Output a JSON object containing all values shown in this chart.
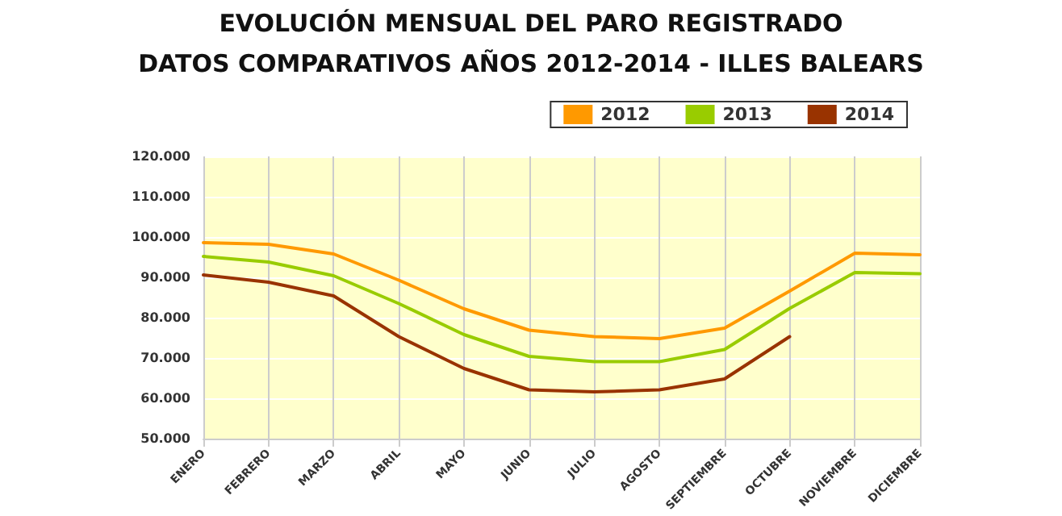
{
  "chart_data": {
    "type": "line",
    "title": "EVOLUCIÓN MENSUAL DEL PARO REGISTRADO",
    "subtitle": "DATOS COMPARATIVOS AÑOS 2012-2014 - ILLES BALEARS",
    "categories": [
      "ENERO",
      "FEBRERO",
      "MARZO",
      "ABRIL",
      "MAYO",
      "JUNIO",
      "JULIO",
      "AGOSTO",
      "SEPTIEMBRE",
      "OCTUBRE",
      "NOVIEMBRE",
      "DICIEMBRE"
    ],
    "series": [
      {
        "name": "2012",
        "color": "#ff9900",
        "values": [
          98600,
          98200,
          95800,
          89300,
          82200,
          76900,
          75300,
          74800,
          77400,
          86600,
          96000,
          95600
        ]
      },
      {
        "name": "2013",
        "color": "#99cc00",
        "values": [
          95200,
          93800,
          90400,
          83500,
          75800,
          70400,
          69100,
          69100,
          72100,
          82300,
          91200,
          90900
        ]
      },
      {
        "name": "2014",
        "color": "#993300",
        "values": [
          90600,
          88800,
          85400,
          75300,
          67400,
          62100,
          61600,
          62100,
          64800,
          75300,
          null,
          null
        ]
      }
    ],
    "ylim": [
      50000,
      120000
    ],
    "yticks": [
      {
        "value": 50000,
        "label": "50.000"
      },
      {
        "value": 60000,
        "label": "60.000"
      },
      {
        "value": 70000,
        "label": "70.000"
      },
      {
        "value": 80000,
        "label": "80.000"
      },
      {
        "value": 90000,
        "label": "90.000"
      },
      {
        "value": 100000,
        "label": "100.000"
      },
      {
        "value": 110000,
        "label": "110.000"
      },
      {
        "value": 120000,
        "label": "120.000"
      }
    ],
    "grid": true,
    "legend": "top right",
    "marker": "none",
    "line_style": "solid"
  }
}
